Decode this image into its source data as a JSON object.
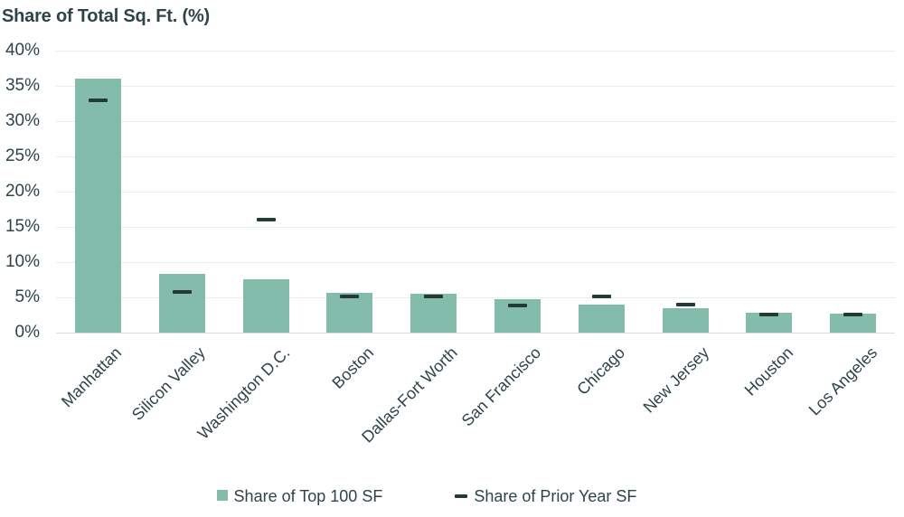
{
  "title": "Share of Total Sq. Ft. (%)",
  "colors": {
    "background": "#FFFFFF",
    "bar_fill": "#84BCAB",
    "prior_year_dash": "#223B35",
    "text": "#2E444A",
    "gridline": "#EBECEC",
    "baseline": "#DADDDC"
  },
  "legend": {
    "items": [
      {
        "label": "Share of Top 100 SF",
        "swatch": "square"
      },
      {
        "label": "Share of Prior Year SF",
        "swatch": "dash"
      }
    ]
  },
  "chart_data": {
    "type": "bar",
    "title": "Share of Total Sq. Ft. (%)",
    "categories": [
      "Manhattan",
      "Silicon Valley",
      "Washington D.C.",
      "Boston",
      "Dallas-Fort Worth",
      "San Francisco",
      "Chicago",
      "New Jersey",
      "Houston",
      "Los Angeles"
    ],
    "series": [
      {
        "name": "Share of Top 100 SF",
        "type": "bar",
        "values": [
          36.0,
          8.3,
          7.6,
          5.6,
          5.5,
          4.8,
          4.0,
          3.5,
          2.8,
          2.7
        ]
      },
      {
        "name": "Share of Prior Year SF",
        "type": "dash-marker",
        "values": [
          33.0,
          5.8,
          16.0,
          5.1,
          5.1,
          3.8,
          5.1,
          4.0,
          2.6,
          2.6
        ]
      }
    ],
    "xlabel": "",
    "ylabel": "Share of Total Sq. Ft. (%)",
    "ylim": [
      0,
      40
    ],
    "ytick_step": 5,
    "ytick_labels": [
      "0%",
      "5%",
      "10%",
      "15%",
      "20%",
      "25%",
      "30%",
      "35%",
      "40%"
    ],
    "grid": true,
    "legend_position": "bottom"
  }
}
